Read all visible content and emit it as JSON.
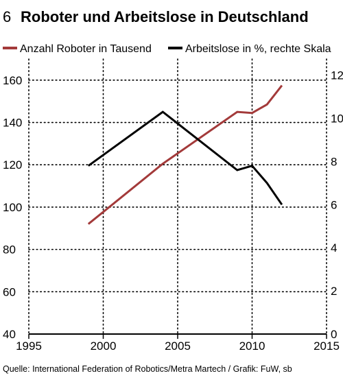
{
  "header": {
    "number": "6",
    "title": "Roboter und Arbeitslose in Deutschland"
  },
  "source": "Quelle: International Federation of Robotics/Metra Martech / Grafik: FuW, sb",
  "colors": {
    "robots": "#a33a3a",
    "unemployment": "#000000",
    "grid": "#000000"
  },
  "chart_data": {
    "type": "line",
    "grid": "dotted vertical and horizontal",
    "legend_placement": "top",
    "x_ticks": [
      "1995",
      "2000",
      "2005",
      "2010",
      "2015"
    ],
    "xlim": [
      1995,
      2015
    ],
    "y_left": {
      "ticks": [
        "160",
        "140",
        "120",
        "100",
        "80",
        "60",
        "40"
      ],
      "ylim": [
        40,
        170
      ]
    },
    "y_right": {
      "ticks": [
        "12",
        "10",
        "8",
        "6",
        "4",
        "2",
        "0"
      ],
      "ylim": [
        0,
        12.75
      ]
    },
    "series": [
      {
        "name": "Anzahl Roboter in Tausend",
        "axis": "left",
        "x": [
          1999,
          2004,
          2009,
          2010,
          2011,
          2012
        ],
        "y": [
          92,
          120.5,
          145,
          144.5,
          148.5,
          157.5
        ]
      },
      {
        "name": "Arbeitslose in %, rechte Skala",
        "axis": "right",
        "x": [
          1999,
          2004,
          2009,
          2010,
          2011,
          2012
        ],
        "y": [
          7.8,
          10.3,
          7.6,
          7.8,
          7.0,
          6.0
        ]
      }
    ]
  }
}
